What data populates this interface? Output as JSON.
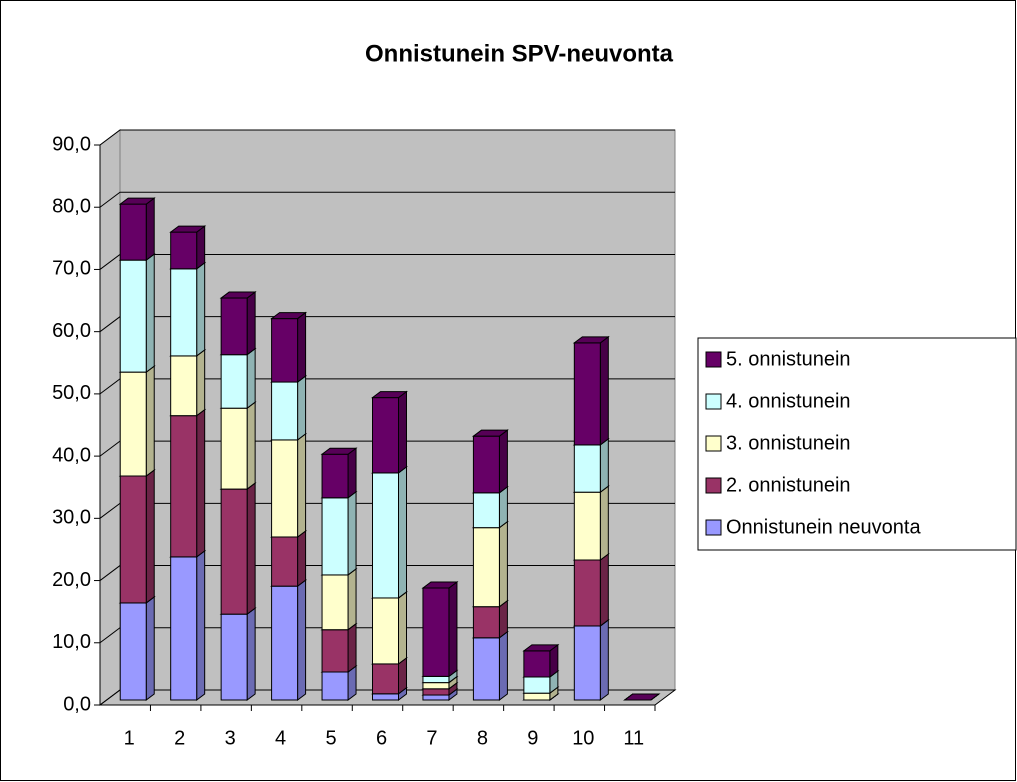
{
  "chart_data": {
    "type": "bar3d_stacked",
    "title": "Onnistunein SPV-neuvonta",
    "categories": [
      "1",
      "2",
      "3",
      "4",
      "5",
      "6",
      "7",
      "8",
      "9",
      "10",
      "11"
    ],
    "series": [
      {
        "name": "Onnistunein neuvonta",
        "color": "#9999ff",
        "values": [
          15.6,
          23.0,
          13.8,
          18.3,
          4.5,
          1.0,
          0.8,
          10.0,
          0,
          11.9,
          0
        ]
      },
      {
        "name": "2. onnistunein",
        "color": "#993366",
        "values": [
          20.4,
          22.7,
          20.1,
          7.9,
          6.8,
          4.8,
          1.0,
          5.0,
          0,
          10.6,
          0
        ]
      },
      {
        "name": "3. onnistunein",
        "color": "#ffffcc",
        "values": [
          16.7,
          9.6,
          13.0,
          15.6,
          8.8,
          10.6,
          1.0,
          12.7,
          1.1,
          10.9,
          0
        ]
      },
      {
        "name": "4. onnistunein",
        "color": "#ccffff",
        "values": [
          18.0,
          14.0,
          8.6,
          9.3,
          12.4,
          20.1,
          1.0,
          5.6,
          2.6,
          7.6,
          0
        ]
      },
      {
        "name": "5. onnistunein",
        "color": "#660066",
        "values": [
          9.0,
          5.9,
          9.1,
          10.2,
          7.0,
          12.1,
          14.2,
          9.1,
          4.2,
          16.4,
          0
        ]
      }
    ],
    "ylim": [
      0,
      90
    ],
    "yticks": [
      {
        "value": 0,
        "label": "0,0"
      },
      {
        "value": 10,
        "label": "10,0"
      },
      {
        "value": 20,
        "label": "20,0"
      },
      {
        "value": 30,
        "label": "30,0"
      },
      {
        "value": 40,
        "label": "40,0"
      },
      {
        "value": 50,
        "label": "50,0"
      },
      {
        "value": 60,
        "label": "60,0"
      },
      {
        "value": 70,
        "label": "70,0"
      },
      {
        "value": 80,
        "label": "80,0"
      },
      {
        "value": 90,
        "label": "90,0"
      }
    ],
    "grid": true,
    "legend": "right"
  }
}
